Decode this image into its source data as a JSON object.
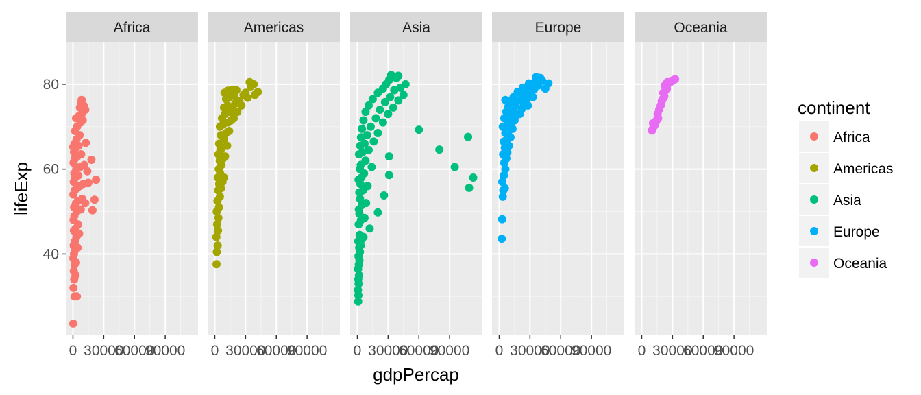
{
  "chart_data": {
    "type": "scatter",
    "facet_by": "continent",
    "xlabel": "gdpPercap",
    "ylabel": "lifeExp",
    "xlim": [
      -7000,
      122000
    ],
    "ylim": [
      21,
      90
    ],
    "x_ticks": [
      0,
      30000,
      60000,
      90000
    ],
    "x_tick_labels": [
      "0",
      "30000",
      "60000",
      "90000"
    ],
    "y_ticks": [
      40,
      60,
      80
    ],
    "y_tick_labels": [
      "40",
      "60",
      "80"
    ],
    "grid": true,
    "legend_position": "right",
    "legend_title": "continent",
    "panels": [
      "Africa",
      "Americas",
      "Asia",
      "Europe",
      "Oceania"
    ],
    "series": [
      {
        "name": "Africa",
        "color": "#F8766D",
        "points": [
          [
            241,
            23.6
          ],
          [
            1500,
            30.0
          ],
          [
            3800,
            30.0
          ],
          [
            500,
            32.0
          ],
          [
            1200,
            34.0
          ],
          [
            2500,
            35.0
          ],
          [
            800,
            36.0
          ],
          [
            1600,
            37.5
          ],
          [
            3000,
            38.0
          ],
          [
            400,
            39.0
          ],
          [
            1000,
            40.0
          ],
          [
            2200,
            41.0
          ],
          [
            4500,
            41.5
          ],
          [
            700,
            42.0
          ],
          [
            1800,
            43.0
          ],
          [
            3300,
            44.0
          ],
          [
            6000,
            44.8
          ],
          [
            900,
            45.5
          ],
          [
            2600,
            46.0
          ],
          [
            5000,
            47.0
          ],
          [
            600,
            48.0
          ],
          [
            1400,
            49.0
          ],
          [
            3600,
            50.0
          ],
          [
            7500,
            50.5
          ],
          [
            1100,
            51.0
          ],
          [
            2900,
            52.0
          ],
          [
            4800,
            52.5
          ],
          [
            9000,
            53.0
          ],
          [
            12000,
            52.0
          ],
          [
            21000,
            52.8
          ],
          [
            19000,
            50.3
          ],
          [
            400,
            54.0
          ],
          [
            1700,
            55.0
          ],
          [
            3900,
            55.5
          ],
          [
            6500,
            56.0
          ],
          [
            10000,
            56.5
          ],
          [
            15000,
            56.8
          ],
          [
            800,
            57.0
          ],
          [
            2300,
            58.0
          ],
          [
            5200,
            58.5
          ],
          [
            22500,
            57.5
          ],
          [
            1300,
            59.0
          ],
          [
            3200,
            60.0
          ],
          [
            7000,
            60.5
          ],
          [
            11000,
            61.0
          ],
          [
            18000,
            62.2
          ],
          [
            14000,
            59.5
          ],
          [
            600,
            61.5
          ],
          [
            2000,
            62.5
          ],
          [
            4200,
            63.0
          ],
          [
            8000,
            63.5
          ],
          [
            1000,
            64.0
          ],
          [
            2700,
            65.0
          ],
          [
            5500,
            65.5
          ],
          [
            300,
            65.2
          ],
          [
            1500,
            66.0
          ],
          [
            3500,
            67.0
          ],
          [
            12500,
            66.2
          ],
          [
            6500,
            68.0
          ],
          [
            2100,
            69.0
          ],
          [
            4000,
            70.0
          ],
          [
            7500,
            71.0
          ],
          [
            9500,
            71.5
          ],
          [
            3000,
            72.0
          ],
          [
            5800,
            72.5
          ],
          [
            8500,
            73.0
          ],
          [
            12000,
            74.0
          ],
          [
            6800,
            74.5
          ],
          [
            7800,
            75.5
          ],
          [
            8500,
            76.3
          ],
          [
            10500,
            75.0
          ],
          [
            9200,
            73.8
          ]
        ]
      },
      {
        "name": "Americas",
        "color": "#A3A500",
        "points": [
          [
            1700,
            37.6
          ],
          [
            2000,
            40.5
          ],
          [
            2800,
            42.0
          ],
          [
            1500,
            44.0
          ],
          [
            3100,
            45.5
          ],
          [
            2300,
            47.0
          ],
          [
            3500,
            48.5
          ],
          [
            1900,
            50.0
          ],
          [
            4000,
            51.0
          ],
          [
            2600,
            52.5
          ],
          [
            5000,
            53.5
          ],
          [
            3300,
            55.0
          ],
          [
            6000,
            55.5
          ],
          [
            4200,
            56.5
          ],
          [
            7500,
            57.0
          ],
          [
            2900,
            58.0
          ],
          [
            5200,
            59.0
          ],
          [
            9000,
            58.0
          ],
          [
            3800,
            60.0
          ],
          [
            6500,
            61.0
          ],
          [
            4800,
            62.0
          ],
          [
            8000,
            62.5
          ],
          [
            3500,
            63.5
          ],
          [
            10000,
            63.0
          ],
          [
            5500,
            64.5
          ],
          [
            7000,
            65.0
          ],
          [
            12000,
            65.5
          ],
          [
            4200,
            66.0
          ],
          [
            9000,
            67.0
          ],
          [
            6000,
            68.0
          ],
          [
            11000,
            68.5
          ],
          [
            14000,
            69.0
          ],
          [
            5000,
            70.0
          ],
          [
            8000,
            70.5
          ],
          [
            13000,
            71.0
          ],
          [
            16000,
            71.5
          ],
          [
            7000,
            72.0
          ],
          [
            10000,
            73.0
          ],
          [
            15000,
            73.5
          ],
          [
            18000,
            74.0
          ],
          [
            9000,
            74.5
          ],
          [
            12500,
            75.0
          ],
          [
            20000,
            75.5
          ],
          [
            24000,
            76.0
          ],
          [
            11000,
            76.5
          ],
          [
            14500,
            77.0
          ],
          [
            19000,
            77.3
          ],
          [
            28000,
            77.5
          ],
          [
            9500,
            78.0
          ],
          [
            13000,
            78.5
          ],
          [
            17000,
            78.7
          ],
          [
            21000,
            78.6
          ],
          [
            30000,
            78.0
          ],
          [
            35000,
            79.5
          ],
          [
            38000,
            80.0
          ],
          [
            34000,
            80.5
          ],
          [
            42000,
            78.2
          ],
          [
            39000,
            77.5
          ],
          [
            32000,
            76.8
          ],
          [
            26000,
            75.0
          ],
          [
            22000,
            73.5
          ],
          [
            18500,
            72.0
          ]
        ]
      },
      {
        "name": "Asia",
        "color": "#00BF7D",
        "points": [
          [
            800,
            28.8
          ],
          [
            1000,
            30.3
          ],
          [
            600,
            31.5
          ],
          [
            1200,
            33.0
          ],
          [
            900,
            34.0
          ],
          [
            1600,
            35.0
          ],
          [
            700,
            36.5
          ],
          [
            1400,
            37.5
          ],
          [
            2000,
            38.5
          ],
          [
            1100,
            39.5
          ],
          [
            2500,
            40.5
          ],
          [
            1800,
            41.5
          ],
          [
            3200,
            42.0
          ],
          [
            900,
            43.0
          ],
          [
            4500,
            43.5
          ],
          [
            2200,
            44.5
          ],
          [
            6000,
            44.0
          ],
          [
            12000,
            46.0
          ],
          [
            1300,
            47.0
          ],
          [
            3500,
            48.0
          ],
          [
            7000,
            48.5
          ],
          [
            2000,
            49.5
          ],
          [
            20000,
            49.8
          ],
          [
            1500,
            50.5
          ],
          [
            4200,
            51.5
          ],
          [
            8500,
            52.0
          ],
          [
            2600,
            53.0
          ],
          [
            26000,
            53.8
          ],
          [
            1900,
            54.5
          ],
          [
            5500,
            55.0
          ],
          [
            3000,
            56.5
          ],
          [
            10000,
            56.0
          ],
          [
            1200,
            57.5
          ],
          [
            4000,
            58.0
          ],
          [
            31000,
            58.6
          ],
          [
            6500,
            59.0
          ],
          [
            2400,
            60.0
          ],
          [
            14000,
            60.5
          ],
          [
            3300,
            61.0
          ],
          [
            8000,
            62.0
          ],
          [
            31000,
            63.0
          ],
          [
            1600,
            63.5
          ],
          [
            5000,
            64.0
          ],
          [
            11000,
            64.5
          ],
          [
            2800,
            65.5
          ],
          [
            7000,
            66.0
          ],
          [
            16000,
            66.5
          ],
          [
            3600,
            67.5
          ],
          [
            9500,
            68.0
          ],
          [
            20000,
            68.5
          ],
          [
            4500,
            69.5
          ],
          [
            13000,
            70.0
          ],
          [
            25000,
            71.0
          ],
          [
            6000,
            71.5
          ],
          [
            18000,
            72.0
          ],
          [
            30000,
            73.0
          ],
          [
            8000,
            73.5
          ],
          [
            22000,
            74.0
          ],
          [
            35000,
            74.5
          ],
          [
            11000,
            75.0
          ],
          [
            27000,
            75.8
          ],
          [
            40000,
            76.2
          ],
          [
            15000,
            76.5
          ],
          [
            32000,
            77.0
          ],
          [
            45000,
            77.5
          ],
          [
            20000,
            78.0
          ],
          [
            36000,
            78.6
          ],
          [
            25000,
            79.0
          ],
          [
            42000,
            79.2
          ],
          [
            28000,
            80.0
          ],
          [
            47000,
            80.0
          ],
          [
            31000,
            81.0
          ],
          [
            38000,
            81.5
          ],
          [
            33000,
            82.2
          ],
          [
            40000,
            82.0
          ],
          [
            60000,
            69.3
          ],
          [
            80000,
            64.6
          ],
          [
            95000,
            60.5
          ],
          [
            108000,
            67.6
          ],
          [
            113000,
            58.0
          ],
          [
            109000,
            55.6
          ]
        ]
      },
      {
        "name": "Europe",
        "color": "#00B0F6",
        "points": [
          [
            2500,
            43.6
          ],
          [
            2900,
            48.2
          ],
          [
            3500,
            53.5
          ],
          [
            4000,
            55.0
          ],
          [
            5500,
            55.5
          ],
          [
            3000,
            57.0
          ],
          [
            4500,
            58.5
          ],
          [
            6000,
            60.0
          ],
          [
            5000,
            61.5
          ],
          [
            7000,
            62.5
          ],
          [
            3800,
            63.5
          ],
          [
            8000,
            64.0
          ],
          [
            5500,
            65.0
          ],
          [
            9500,
            65.5
          ],
          [
            4500,
            66.5
          ],
          [
            7500,
            67.0
          ],
          [
            11000,
            67.5
          ],
          [
            6000,
            68.5
          ],
          [
            9000,
            69.0
          ],
          [
            13000,
            69.5
          ],
          [
            3500,
            70.0
          ],
          [
            8000,
            70.5
          ],
          [
            12000,
            71.0
          ],
          [
            15000,
            71.5
          ],
          [
            5000,
            72.0
          ],
          [
            10000,
            72.5
          ],
          [
            17000,
            72.8
          ],
          [
            20000,
            73.0
          ],
          [
            7000,
            73.5
          ],
          [
            13500,
            74.0
          ],
          [
            22000,
            74.2
          ],
          [
            9000,
            74.8
          ],
          [
            16000,
            75.0
          ],
          [
            24000,
            75.5
          ],
          [
            11000,
            76.0
          ],
          [
            19000,
            76.2
          ],
          [
            27000,
            76.5
          ],
          [
            6000,
            76.3
          ],
          [
            14000,
            77.0
          ],
          [
            22000,
            77.5
          ],
          [
            30000,
            77.8
          ],
          [
            18000,
            78.2
          ],
          [
            26000,
            78.5
          ],
          [
            34000,
            78.8
          ],
          [
            23000,
            79.2
          ],
          [
            31000,
            79.5
          ],
          [
            38000,
            79.7
          ],
          [
            29000,
            80.2
          ],
          [
            35000,
            80.5
          ],
          [
            42000,
            80.8
          ],
          [
            48000,
            80.2
          ],
          [
            40000,
            81.5
          ],
          [
            36000,
            81.7
          ],
          [
            45000,
            79.0
          ],
          [
            33000,
            77.0
          ],
          [
            28000,
            75.0
          ]
        ]
      },
      {
        "name": "Oceania",
        "color": "#E76BF3",
        "points": [
          [
            10000,
            69.1
          ],
          [
            10500,
            69.4
          ],
          [
            11500,
            70.0
          ],
          [
            12500,
            70.3
          ],
          [
            11000,
            70.8
          ],
          [
            13500,
            71.0
          ],
          [
            14500,
            71.5
          ],
          [
            16000,
            72.0
          ],
          [
            15500,
            73.0
          ],
          [
            17000,
            74.0
          ],
          [
            18500,
            75.0
          ],
          [
            19500,
            76.0
          ],
          [
            20500,
            76.5
          ],
          [
            22000,
            77.2
          ],
          [
            21000,
            78.0
          ],
          [
            23000,
            78.5
          ],
          [
            24500,
            79.0
          ],
          [
            22500,
            79.7
          ],
          [
            26000,
            80.2
          ],
          [
            25000,
            80.5
          ],
          [
            28500,
            80.6
          ],
          [
            31000,
            81.0
          ],
          [
            32500,
            81.2
          ]
        ]
      }
    ]
  }
}
